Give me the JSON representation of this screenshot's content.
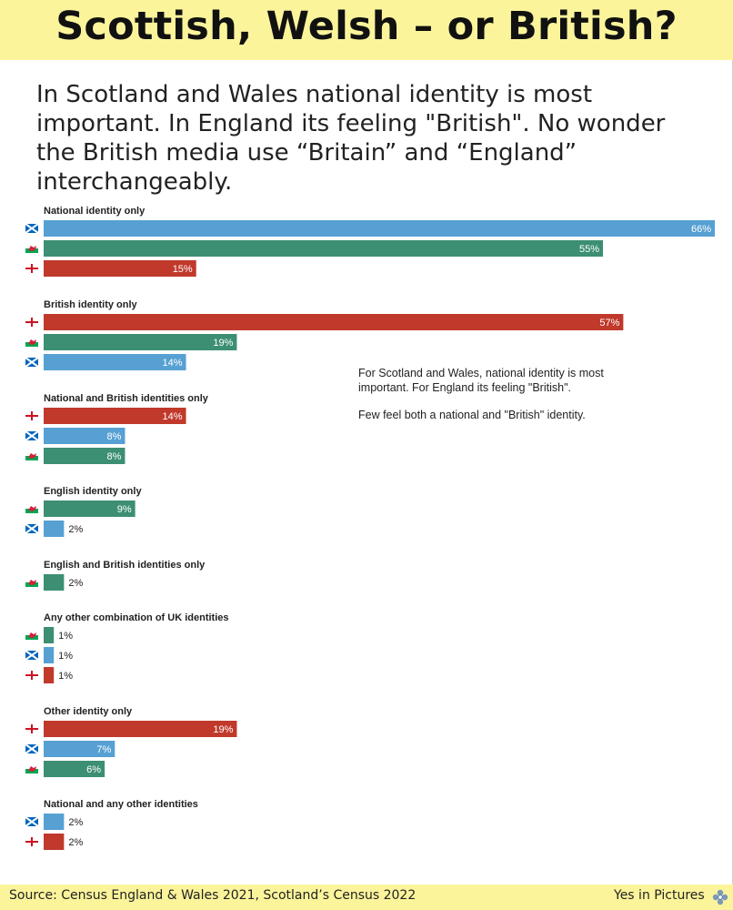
{
  "title": "Scottish, Welsh – or British?",
  "subtitle": "In Scotland and Wales national identity is most important. In England its feeling \"British\". No wonder the British media use “Britain” and “England” interchangeably.",
  "annotation": {
    "line1": "For Scotland and Wales, national identity is most important. For England its feeling \"British\".",
    "line2": "Few feel both a national and \"British\" identity."
  },
  "footer": {
    "source": "Source: Census England & Wales 2021, Scotland’s Census 2022",
    "brand": "Yes in Pictures",
    "brand_icon": "thistle-icon"
  },
  "colors": {
    "scotland": "#56a0d3",
    "wales": "#3c8f72",
    "england": "#c0392b",
    "header_bg": "#fbf49b"
  },
  "chart_data": {
    "type": "bar",
    "orientation": "horizontal",
    "unit": "%",
    "xlim": [
      0,
      66
    ],
    "series_icons": {
      "scotland": "saltire-flag-icon",
      "wales": "welsh-dragon-flag-icon",
      "england": "st-george-cross-flag-icon"
    },
    "groups": [
      {
        "label": "National identity only",
        "bars": [
          {
            "country": "scotland",
            "value": 66
          },
          {
            "country": "wales",
            "value": 55
          },
          {
            "country": "england",
            "value": 15
          }
        ]
      },
      {
        "label": "British identity only",
        "bars": [
          {
            "country": "england",
            "value": 57
          },
          {
            "country": "wales",
            "value": 19
          },
          {
            "country": "scotland",
            "value": 14
          }
        ]
      },
      {
        "label": "National and British identities only",
        "bars": [
          {
            "country": "england",
            "value": 14
          },
          {
            "country": "scotland",
            "value": 8
          },
          {
            "country": "wales",
            "value": 8
          }
        ]
      },
      {
        "label": "English identity only",
        "bars": [
          {
            "country": "wales",
            "value": 9
          },
          {
            "country": "scotland",
            "value": 2
          }
        ]
      },
      {
        "label": "English and British identities only",
        "bars": [
          {
            "country": "wales",
            "value": 2
          }
        ]
      },
      {
        "label": "Any other combination of UK identities",
        "bars": [
          {
            "country": "wales",
            "value": 1
          },
          {
            "country": "scotland",
            "value": 1
          },
          {
            "country": "england",
            "value": 1
          }
        ]
      },
      {
        "label": "Other identity only",
        "bars": [
          {
            "country": "england",
            "value": 19
          },
          {
            "country": "scotland",
            "value": 7
          },
          {
            "country": "wales",
            "value": 6
          }
        ]
      },
      {
        "label": "National and any other identities",
        "bars": [
          {
            "country": "scotland",
            "value": 2
          },
          {
            "country": "england",
            "value": 2
          }
        ]
      }
    ]
  }
}
